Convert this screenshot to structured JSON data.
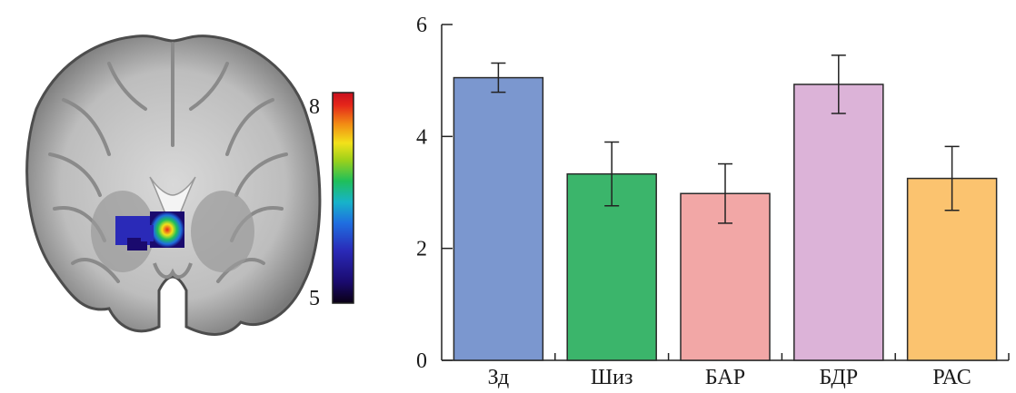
{
  "brain_figure": {
    "colorbar": {
      "max_label": "8",
      "min_label": "5",
      "colors": [
        "#0a0014",
        "#1a0a6e",
        "#2a2ab8",
        "#1f6ee0",
        "#17b3c9",
        "#1fbf5a",
        "#9ed11a",
        "#f2e21a",
        "#f28c14",
        "#e5261a",
        "#c80f1e"
      ]
    }
  },
  "chart_data": {
    "type": "bar",
    "categories": [
      "Зд",
      "Шиз",
      "БАР",
      "БДР",
      "РАС"
    ],
    "values": [
      5.05,
      3.33,
      2.98,
      4.93,
      3.25
    ],
    "errors": [
      0.26,
      0.57,
      0.53,
      0.52,
      0.57
    ],
    "colors": [
      "#7b97cf",
      "#3bb56b",
      "#f2a7a6",
      "#dcb3d8",
      "#fbc36f"
    ],
    "ylim": [
      0,
      6
    ],
    "yticks": [
      "0",
      "2",
      "4",
      "6"
    ],
    "title": "",
    "xlabel": "",
    "ylabel": "",
    "grid": false
  }
}
